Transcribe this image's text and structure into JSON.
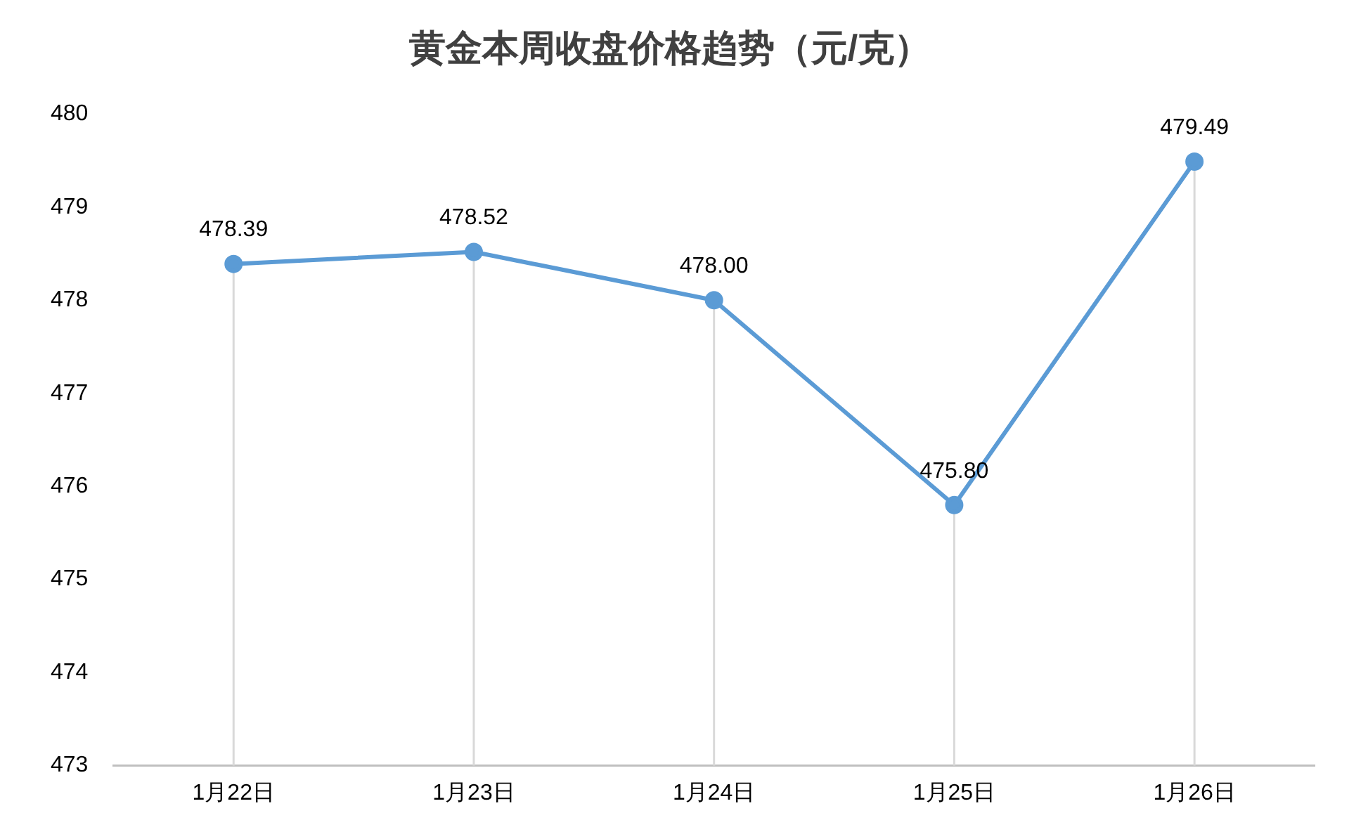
{
  "chart_data": {
    "type": "line",
    "title": "黄金本周收盘价格趋势（元/克）",
    "categories": [
      "1月22日",
      "1月23日",
      "1月24日",
      "1月25日",
      "1月26日"
    ],
    "series": [
      {
        "color": "#5b9bd5",
        "values": [
          478.39,
          478.52,
          478.0,
          475.8,
          479.49
        ],
        "value_labels": [
          "478.39",
          "478.52",
          "478.00",
          "475.80",
          "479.49"
        ]
      }
    ],
    "ylim": [
      473,
      480
    ],
    "yticks": [
      473,
      474,
      475,
      476,
      477,
      478,
      479,
      480
    ],
    "marker": "circle",
    "grid": "x"
  }
}
